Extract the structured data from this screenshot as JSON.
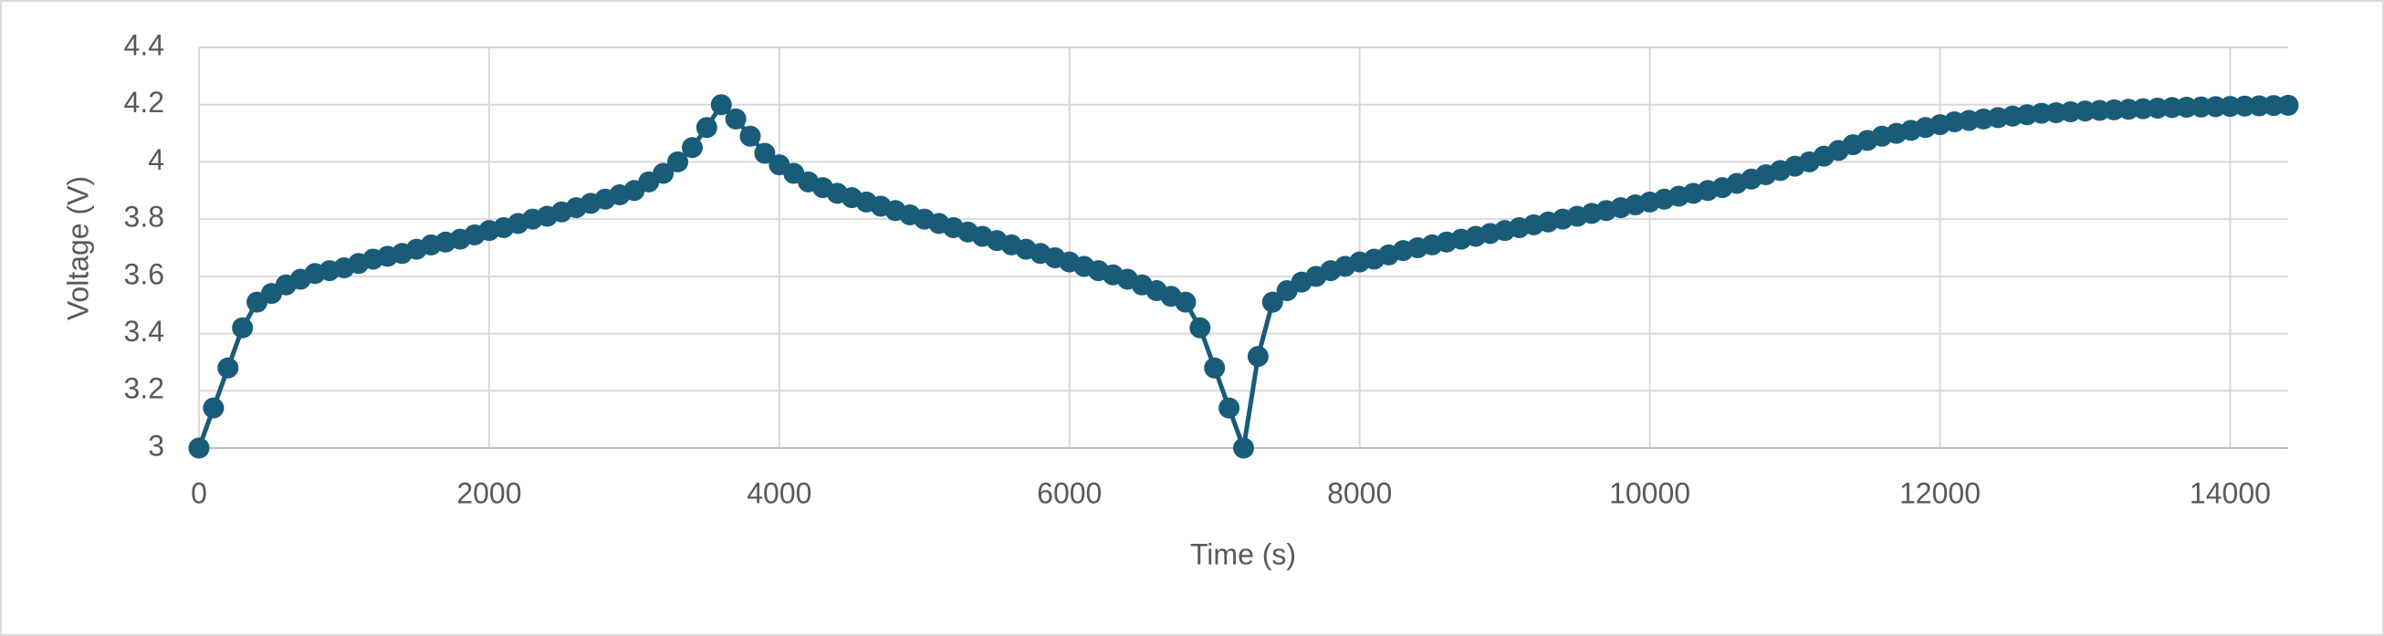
{
  "chart_data": {
    "type": "line",
    "x_label": "Time (s)",
    "y_label": "Voltage (V)",
    "color": "#185c7a",
    "xlim": [
      0,
      14400
    ],
    "xticks": [
      0,
      2000,
      4000,
      6000,
      8000,
      10000,
      12000,
      14000
    ],
    "ylim": [
      3,
      4.4
    ],
    "yticks": [
      3,
      3.2,
      3.4,
      3.6,
      3.8,
      4,
      4.2,
      4.4
    ],
    "grid": true,
    "x": [
      0,
      100,
      200,
      300,
      400,
      500,
      600,
      700,
      800,
      900,
      1000,
      1100,
      1200,
      1300,
      1400,
      1500,
      1600,
      1700,
      1800,
      1900,
      2000,
      2100,
      2200,
      2300,
      2400,
      2500,
      2600,
      2700,
      2800,
      2900,
      3000,
      3100,
      3200,
      3300,
      3400,
      3500,
      3600,
      3700,
      3800,
      3900,
      4000,
      4100,
      4200,
      4300,
      4400,
      4500,
      4600,
      4700,
      4800,
      4900,
      5000,
      5100,
      5200,
      5300,
      5400,
      5500,
      5600,
      5700,
      5800,
      5900,
      6000,
      6100,
      6200,
      6300,
      6400,
      6500,
      6600,
      6700,
      6800,
      6900,
      7000,
      7100,
      7200,
      7300,
      7400,
      7500,
      7600,
      7700,
      7800,
      7900,
      8000,
      8100,
      8200,
      8300,
      8400,
      8500,
      8600,
      8700,
      8800,
      8900,
      9000,
      9100,
      9200,
      9300,
      9400,
      9500,
      9600,
      9700,
      9800,
      9900,
      10000,
      10100,
      10200,
      10300,
      10400,
      10500,
      10600,
      10700,
      10800,
      10900,
      11000,
      11100,
      11200,
      11300,
      11400,
      11500,
      11600,
      11700,
      11800,
      11900,
      12000,
      12100,
      12200,
      12300,
      12400,
      12500,
      12600,
      12700,
      12800,
      12900,
      13000,
      13100,
      13200,
      13300,
      13400,
      13500,
      13600,
      13700,
      13800,
      13900,
      14000,
      14100,
      14200,
      14300,
      14400
    ],
    "values": [
      3.0,
      3.14,
      3.28,
      3.42,
      3.51,
      3.54,
      3.57,
      3.59,
      3.61,
      3.62,
      3.63,
      3.645,
      3.66,
      3.67,
      3.68,
      3.695,
      3.71,
      3.72,
      3.73,
      3.745,
      3.76,
      3.77,
      3.785,
      3.8,
      3.81,
      3.825,
      3.84,
      3.855,
      3.87,
      3.885,
      3.9,
      3.93,
      3.96,
      4.0,
      4.05,
      4.12,
      4.2,
      4.15,
      4.09,
      4.03,
      3.99,
      3.96,
      3.93,
      3.91,
      3.89,
      3.875,
      3.86,
      3.845,
      3.83,
      3.815,
      3.8,
      3.785,
      3.77,
      3.755,
      3.74,
      3.725,
      3.71,
      3.695,
      3.68,
      3.665,
      3.65,
      3.635,
      3.62,
      3.605,
      3.59,
      3.57,
      3.55,
      3.53,
      3.51,
      3.42,
      3.28,
      3.14,
      3.0,
      3.32,
      3.51,
      3.55,
      3.58,
      3.6,
      3.62,
      3.635,
      3.65,
      3.66,
      3.675,
      3.69,
      3.7,
      3.71,
      3.72,
      3.73,
      3.74,
      3.75,
      3.76,
      3.77,
      3.78,
      3.79,
      3.8,
      3.81,
      3.82,
      3.83,
      3.84,
      3.85,
      3.86,
      3.87,
      3.88,
      3.89,
      3.9,
      3.91,
      3.925,
      3.94,
      3.955,
      3.97,
      3.985,
      4.0,
      4.02,
      4.04,
      4.06,
      4.075,
      4.09,
      4.1,
      4.11,
      4.12,
      4.13,
      4.14,
      4.145,
      4.15,
      4.155,
      4.16,
      4.165,
      4.17,
      4.172,
      4.175,
      4.178,
      4.18,
      4.182,
      4.184,
      4.186,
      4.188,
      4.19,
      4.191,
      4.192,
      4.193,
      4.194,
      4.195,
      4.196,
      4.197,
      4.198
    ]
  }
}
